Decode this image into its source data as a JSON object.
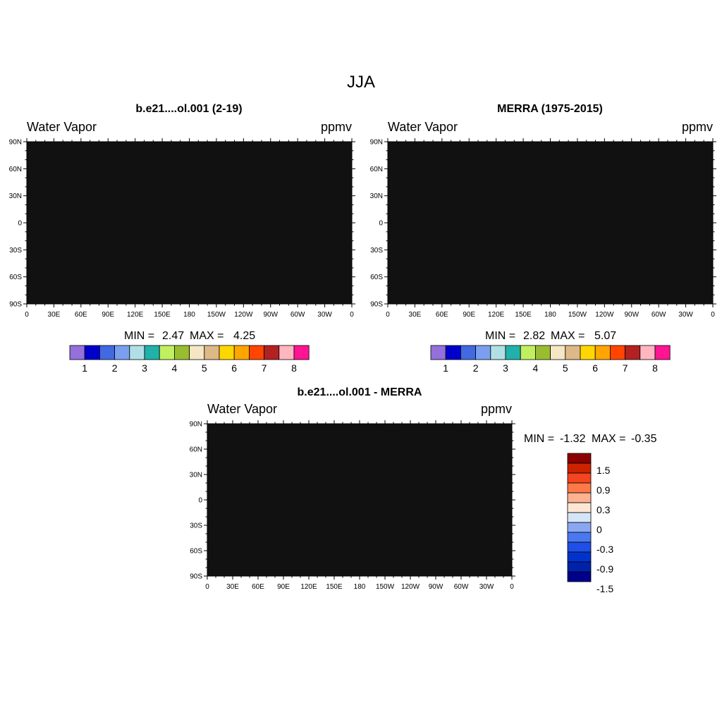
{
  "figure": {
    "title": "JJA"
  },
  "common": {
    "left_label": "Water Vapor",
    "right_label": "ppmv",
    "lat_ticks": [
      "90N",
      "60N",
      "30N",
      "0",
      "30S",
      "60S",
      "90S"
    ],
    "lon_ticks": [
      "0",
      "30E",
      "60E",
      "90E",
      "120E",
      "150E",
      "180",
      "150W",
      "120W",
      "90W",
      "60W",
      "30W",
      "0"
    ],
    "min_label": "MIN =",
    "max_label": "MAX ="
  },
  "seq_colors": [
    "#9370db",
    "#0000cd",
    "#4169e1",
    "#7b9ff0",
    "#b0e0e6",
    "#20b2aa",
    "#c0f060",
    "#9abd30",
    "#f5e6c4",
    "#deb887",
    "#ffd700",
    "#ffa500",
    "#ff4500",
    "#b22222",
    "#ffb6c1",
    "#ff1493"
  ],
  "seq_labels": [
    "1",
    "2",
    "3",
    "4",
    "5",
    "6",
    "7",
    "8"
  ],
  "div_colors": [
    "#00008b",
    "#0022aa",
    "#0033cc",
    "#1f4fe6",
    "#4a78f0",
    "#8aa8f2",
    "#d5e5f8",
    "#fde7d4",
    "#fdb290",
    "#fd7a48",
    "#f54520",
    "#cc2200",
    "#8b0000"
  ],
  "div_labels": [
    "-1.5",
    "-0.9",
    "-0.3",
    "0",
    "0.3",
    "0.9",
    "1.5"
  ],
  "chart_data": [
    {
      "type": "heatmap",
      "title": "b.e21....ol.001 (2-19)",
      "variable": "Water Vapor",
      "units": "ppmv",
      "min": "2.47",
      "max": "4.25",
      "colorbar_levels": [
        "1",
        "2",
        "3",
        "4",
        "5",
        "6",
        "7",
        "8"
      ]
    },
    {
      "type": "heatmap",
      "title": "MERRA (1975-2015)",
      "variable": "Water Vapor",
      "units": "ppmv",
      "min": "2.82",
      "max": "5.07",
      "colorbar_levels": [
        "1",
        "2",
        "3",
        "4",
        "5",
        "6",
        "7",
        "8"
      ]
    },
    {
      "type": "heatmap",
      "title": "b.e21....ol.001 - MERRA",
      "variable": "Water Vapor",
      "units": "ppmv",
      "min": "-1.32",
      "max": "-0.35",
      "colorbar_levels": [
        "-1.5",
        "-0.9",
        "-0.3",
        "0",
        "0.3",
        "0.9",
        "1.5"
      ]
    }
  ]
}
